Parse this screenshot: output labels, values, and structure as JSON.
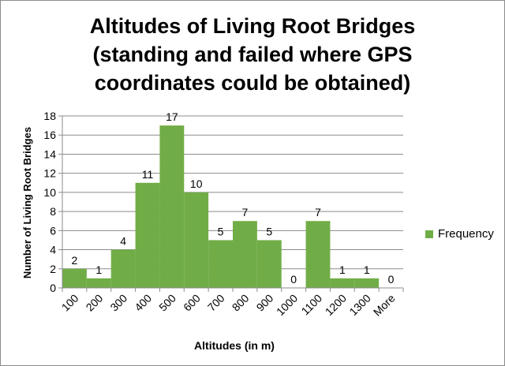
{
  "chart_data": {
    "type": "bar",
    "title_lines": [
      "Altitudes of Living Root Bridges",
      "(standing and failed where GPS",
      "coordinates could be obtained)"
    ],
    "xlabel": "Altitudes (in m)",
    "ylabel": "Number of Living Root Bridges",
    "categories": [
      "100",
      "200",
      "300",
      "400",
      "500",
      "600",
      "700",
      "800",
      "900",
      "1000",
      "1100",
      "1200",
      "1300",
      "More"
    ],
    "series": [
      {
        "name": "Frequency",
        "values": [
          2,
          1,
          4,
          11,
          17,
          10,
          5,
          7,
          5,
          0,
          7,
          1,
          1,
          0
        ],
        "color": "#70ad47"
      }
    ],
    "ylim": [
      0,
      18
    ],
    "yticks": [
      0,
      2,
      4,
      6,
      8,
      10,
      12,
      14,
      16,
      18
    ],
    "grid": true,
    "legend": "right",
    "data_labels": true
  }
}
